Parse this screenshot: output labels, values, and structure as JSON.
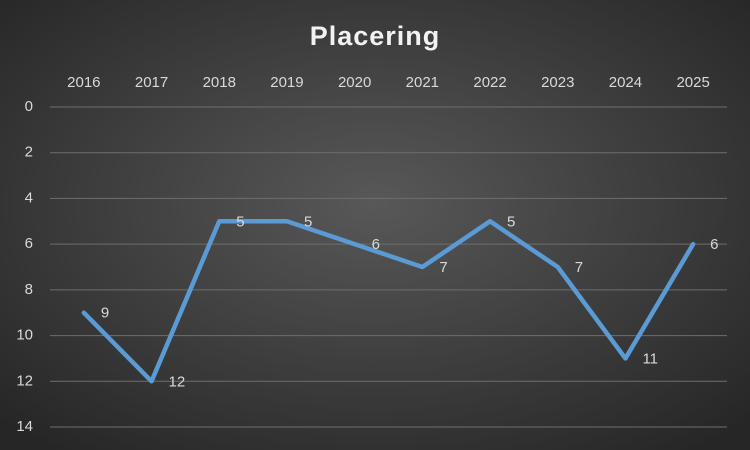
{
  "chart_data": {
    "type": "line",
    "title": "Placering",
    "categories": [
      "2016",
      "2017",
      "2018",
      "2019",
      "2020",
      "2021",
      "2022",
      "2023",
      "2024",
      "2025"
    ],
    "values": [
      9,
      12,
      5,
      5,
      6,
      7,
      5,
      7,
      11,
      6
    ],
    "color": "#5b9bd5",
    "ylim": [
      0,
      14
    ],
    "yticks": [
      0,
      2,
      4,
      6,
      8,
      10,
      12,
      14
    ],
    "y_inverted": true,
    "grid": true,
    "data_labels": true
  }
}
